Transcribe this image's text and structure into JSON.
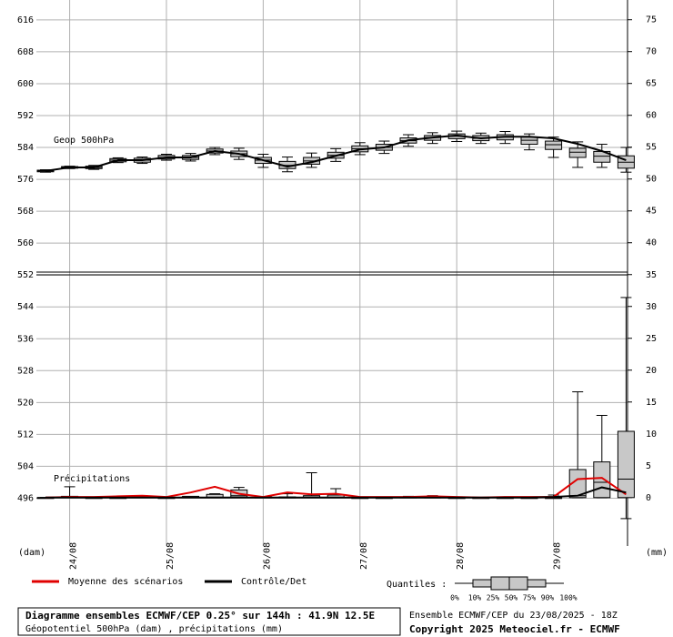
{
  "chart_data": {
    "type": "box",
    "title": "Diagramme ensembles ECMWF/CEP 0.25° sur 144h : 41.9N 12.5E",
    "subtitle": "Géopotentiel 500hPa (dam) , précipitations (mm)",
    "source": "Ensemble ECMWF/CEP du 23/08/2025 - 18Z",
    "copyright": "Copyright 2025 Meteociel.fr - ECMWF",
    "ylabel": "(dam)",
    "y2label": "(mm)",
    "annotations": [
      "Geop 500hPa",
      "Précipitations"
    ],
    "categories": [
      null,
      "24/08",
      null,
      null,
      null,
      "25/08",
      null,
      null,
      null,
      "26/08",
      null,
      null,
      null,
      "27/08",
      null,
      null,
      null,
      "28/08",
      null,
      null,
      null,
      "29/08",
      null,
      null,
      null
    ],
    "ylim": [
      484,
      621
    ],
    "yticks": [
      496,
      504,
      512,
      520,
      528,
      536,
      544,
      552,
      560,
      568,
      576,
      584,
      592,
      600,
      608,
      616
    ],
    "y2lim": [
      -7.6,
      78.1
    ],
    "y2ticks": [
      0,
      5,
      10,
      15,
      20,
      25,
      30,
      35,
      40,
      45,
      50,
      55,
      60,
      65,
      70,
      75
    ],
    "grid": true,
    "series": [
      {
        "name": "Moyenne des scénarios",
        "color": "#e00000",
        "axis": "y2",
        "values": [
          0,
          0.1,
          0.1,
          0.2,
          0.3,
          0.1,
          0.8,
          1.7,
          0.6,
          0.1,
          0.8,
          0.5,
          0.6,
          0.1,
          0.1,
          0.1,
          0.2,
          0.1,
          0,
          0.1,
          0.1,
          0.1,
          2.9,
          3.1,
          0.5
        ]
      },
      {
        "name": "Contrôle/Det",
        "color": "#000000",
        "values": [
          578.1,
          579.0,
          579.0,
          580.8,
          580.8,
          581.5,
          581.5,
          583.1,
          582.4,
          580.8,
          579.2,
          580.3,
          581.9,
          583.5,
          584.0,
          585.8,
          586.5,
          587.0,
          586.3,
          586.7,
          586.7,
          586.3,
          584.9,
          583.1,
          580.8
        ]
      },
      {
        "color": "#000000",
        "axis": "y2",
        "values": [
          0,
          0,
          0,
          0,
          0,
          0,
          0,
          0,
          0,
          0,
          0,
          0,
          0,
          0,
          0,
          0,
          0,
          0,
          0,
          0,
          0,
          0.1,
          0.3,
          1.6,
          0.8
        ]
      }
    ],
    "box_color": "#c8c8c8",
    "box_series": [
      {
        "axis": "y",
        "low": [
          577.8,
          578.7,
          578.5,
          580.2,
          580.0,
          580.8,
          580.6,
          582.2,
          581.0,
          579.0,
          577.9,
          579.0,
          580.5,
          582.2,
          582.5,
          584.3,
          585.0,
          585.5,
          585.0,
          585.0,
          583.4,
          581.5,
          579.0,
          579.0,
          577.8
        ],
        "q25": [
          577.9,
          578.8,
          578.7,
          580.4,
          580.3,
          581.1,
          581.0,
          582.6,
          581.7,
          580.0,
          578.7,
          579.8,
          581.3,
          582.9,
          583.3,
          585.1,
          585.8,
          586.2,
          585.7,
          585.9,
          584.8,
          583.5,
          581.5,
          580.3,
          578.8
        ],
        "median": [
          578.1,
          579.0,
          579.0,
          580.8,
          580.8,
          581.5,
          581.5,
          583.1,
          582.4,
          580.8,
          579.5,
          580.6,
          582.0,
          583.7,
          584.0,
          585.7,
          586.5,
          586.8,
          586.3,
          586.6,
          585.8,
          584.7,
          582.8,
          581.8,
          580.3
        ],
        "q75": [
          578.3,
          579.2,
          579.3,
          581.2,
          581.3,
          582.0,
          582.0,
          583.6,
          583.1,
          581.5,
          580.5,
          581.5,
          582.8,
          584.4,
          584.8,
          586.4,
          587.0,
          587.4,
          587.0,
          587.2,
          586.6,
          585.6,
          583.8,
          583.0,
          581.9
        ],
        "high": [
          578.4,
          579.3,
          579.5,
          581.4,
          581.6,
          582.3,
          582.5,
          584.0,
          583.8,
          582.3,
          581.6,
          582.6,
          583.7,
          585.2,
          585.6,
          587.2,
          587.7,
          588.1,
          587.6,
          588.0,
          587.4,
          586.6,
          585.4,
          584.8,
          584.0
        ]
      },
      {
        "axis": "y2",
        "low": [
          0,
          0,
          0,
          0,
          0,
          0,
          0,
          0,
          0,
          0,
          0,
          0,
          0,
          0,
          0,
          0,
          0,
          0,
          0,
          0,
          0,
          0,
          0,
          0,
          -3.3
        ],
        "q25": [
          0,
          0,
          0,
          0,
          0,
          0,
          0,
          0,
          0,
          0,
          0,
          0,
          0,
          0,
          0,
          0,
          0,
          0,
          0,
          0,
          0,
          0,
          0,
          0,
          0
        ],
        "median": [
          0,
          0,
          0,
          0,
          0,
          0,
          0,
          0,
          0.3,
          0,
          0,
          0,
          0,
          0,
          0,
          0,
          0,
          0,
          0,
          0,
          0,
          0,
          0.3,
          2.4,
          2.9
        ],
        "q75": [
          0,
          0.2,
          0,
          0,
          0.2,
          0,
          0.2,
          0.5,
          1.2,
          0.1,
          0.1,
          0.3,
          0.4,
          0,
          0,
          0.1,
          0.1,
          0,
          0,
          0,
          0,
          0,
          4.4,
          5.6,
          10.4
        ],
        "high": [
          0,
          1.7,
          0,
          0.2,
          0.3,
          0,
          0,
          0.6,
          1.6,
          0,
          0.6,
          3.9,
          1.4,
          0,
          0,
          0.2,
          0.3,
          0,
          0,
          0,
          0,
          0.4,
          16.6,
          12.9,
          31.4
        ]
      }
    ],
    "quantile_legend": {
      "label": "Quantiles :",
      "ticks": [
        "0%",
        "10%",
        "25%",
        "50%",
        "75%",
        "90%",
        "100%"
      ]
    }
  }
}
